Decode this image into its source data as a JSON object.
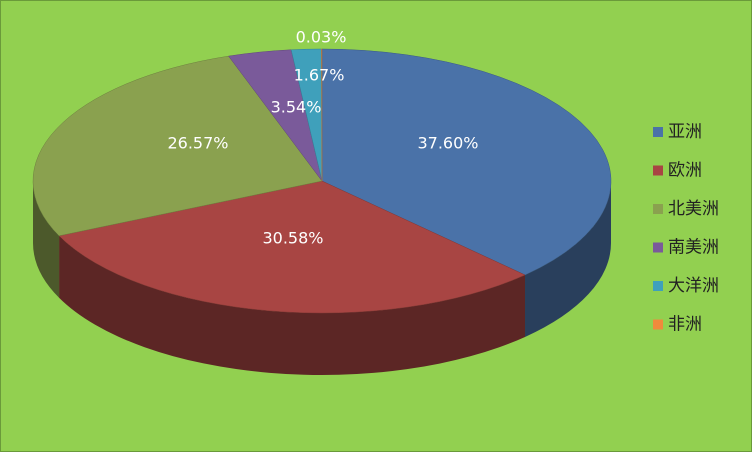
{
  "chart_data": {
    "type": "pie",
    "categories": [
      "亚洲",
      "欧洲",
      "北美洲",
      "南美洲",
      "大洋洲",
      "非洲"
    ],
    "values": [
      37.6,
      30.58,
      26.57,
      3.54,
      1.67,
      0.03
    ],
    "value_labels": [
      "37.60%",
      "30.58%",
      "26.57%",
      "3.54%",
      "1.67%",
      "0.03%"
    ],
    "colors": [
      "#4a72a8",
      "#a84543",
      "#8aa14f",
      "#7a5a9a",
      "#3fa0bb",
      "#f08a3c"
    ],
    "legend": "right"
  }
}
